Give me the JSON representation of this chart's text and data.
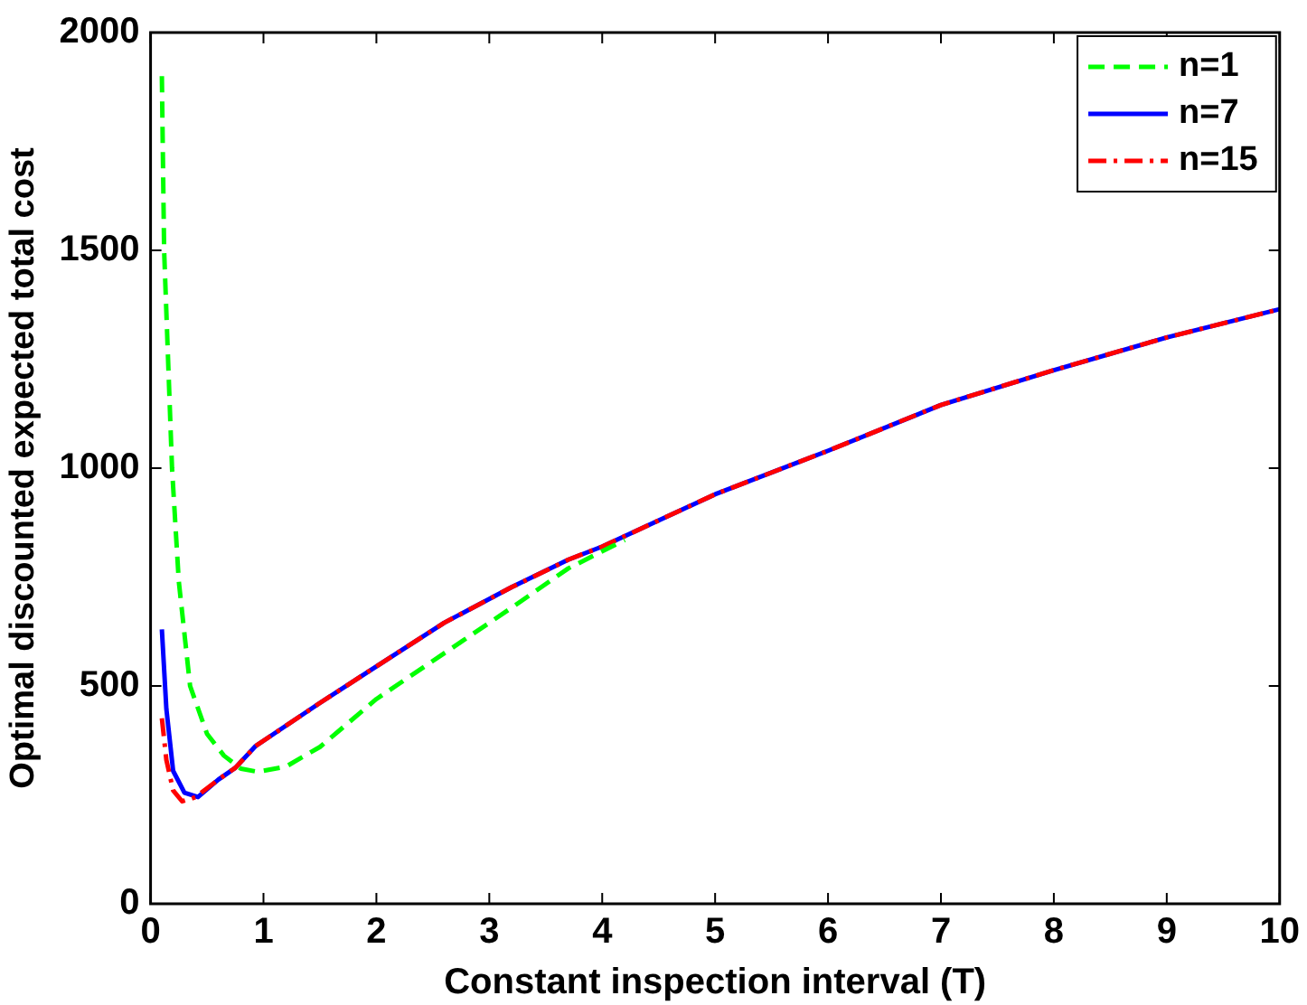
{
  "chart_data": {
    "type": "line",
    "xlabel": "Constant inspection interval (T)",
    "ylabel": "Optimal discounted expected total cost",
    "xlim": [
      0,
      10
    ],
    "xticks": [
      0,
      1,
      2,
      3,
      4,
      5,
      6,
      7,
      8,
      9,
      10
    ],
    "ylim": [
      0,
      2000
    ],
    "yticks": [
      0,
      500,
      1000,
      1500,
      2000
    ],
    "grid": false,
    "legend": "top right",
    "marker": "none",
    "series": [
      {
        "name": "n=1",
        "color": "#00ff00",
        "line_style": "dashed",
        "x": [
          0.1,
          0.12,
          0.19,
          0.25,
          0.35,
          0.5,
          0.65,
          0.8,
          0.95,
          1.2,
          1.5,
          2,
          2.6,
          3.2,
          3.7,
          4.2
        ],
        "values": [
          1900,
          1500,
          1000,
          740,
          500,
          390,
          340,
          310,
          303,
          315,
          360,
          470,
          575,
          680,
          770,
          835
        ]
      },
      {
        "name": "n=7",
        "color": "#0000ff",
        "line_style": "solid",
        "x": [
          0.1,
          0.14,
          0.2,
          0.3,
          0.42,
          0.6,
          0.75,
          0.93,
          1.5,
          2,
          2.6,
          3.2,
          3.7,
          4,
          5,
          6,
          7,
          8,
          9,
          10
        ],
        "values": [
          630,
          447,
          305,
          255,
          245,
          285,
          312,
          362,
          461,
          545,
          645,
          727,
          790,
          820,
          940,
          1040,
          1145,
          1225,
          1300,
          1365
        ]
      },
      {
        "name": "n=15",
        "color": "#ff0000",
        "line_style": "dashdot",
        "x": [
          0.1,
          0.14,
          0.2,
          0.28,
          0.4,
          0.6,
          0.75,
          0.93,
          1.5,
          2,
          2.6,
          3.2,
          3.7,
          4,
          5,
          6,
          7,
          8,
          9,
          10
        ],
        "values": [
          426,
          330,
          260,
          235,
          245,
          285,
          312,
          362,
          461,
          545,
          645,
          727,
          790,
          820,
          940,
          1040,
          1145,
          1225,
          1300,
          1365
        ]
      }
    ]
  }
}
